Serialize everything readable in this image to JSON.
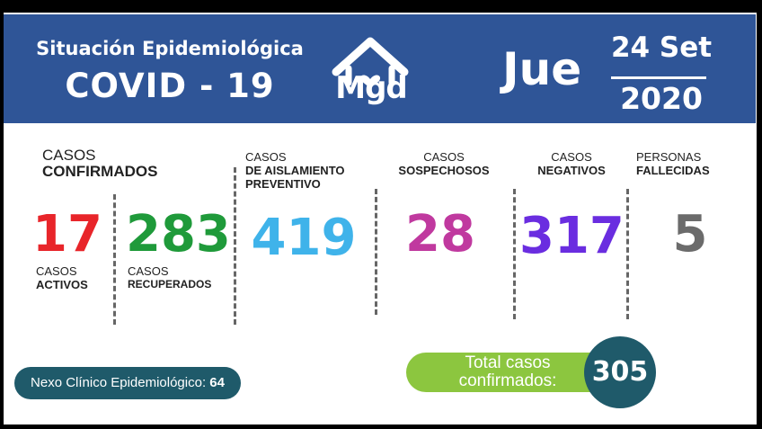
{
  "header": {
    "title_line1": "Situación Epidemiológica",
    "title_line2": "COVID - 19",
    "logo_text": "Mgd",
    "day": "Jue",
    "date_line1": "24 Set",
    "date_line2": "2020",
    "background_color": "#2f5597"
  },
  "stats": {
    "confirmados": {
      "label_thin": "CASOS",
      "label_bold": "CONFIRMADOS"
    },
    "activos": {
      "value": "17",
      "label_thin": "CASOS",
      "label_bold": "ACTIVOS",
      "color": "#e8252a"
    },
    "recuperados": {
      "value": "283",
      "label_thin": "CASOS",
      "label_bold": "RECUPERADOS",
      "color": "#1f9a3a"
    },
    "aislamiento": {
      "value": "419",
      "label_thin": "CASOS",
      "label_bold1": "DE AISLAMIENTO",
      "label_bold2": "PREVENTIVO",
      "color": "#3fb3ea"
    },
    "sospechosos": {
      "value": "28",
      "label_thin": "CASOS",
      "label_bold": "SOSPECHOSOS",
      "color": "#c0399f"
    },
    "negativos": {
      "value": "317",
      "label_thin": "CASOS",
      "label_bold": "NEGATIVOS",
      "color": "#6a2de0"
    },
    "fallecidas": {
      "value": "5",
      "label_thin": "PERSONAS",
      "label_bold": "FALLECIDAS",
      "color": "#6b6b6b"
    }
  },
  "footer": {
    "nexo_label": "Nexo Clínico Epidemiológico:",
    "nexo_value": "64",
    "total_line1": "Total casos",
    "total_line2": "confirmados:",
    "total_value": "305"
  }
}
